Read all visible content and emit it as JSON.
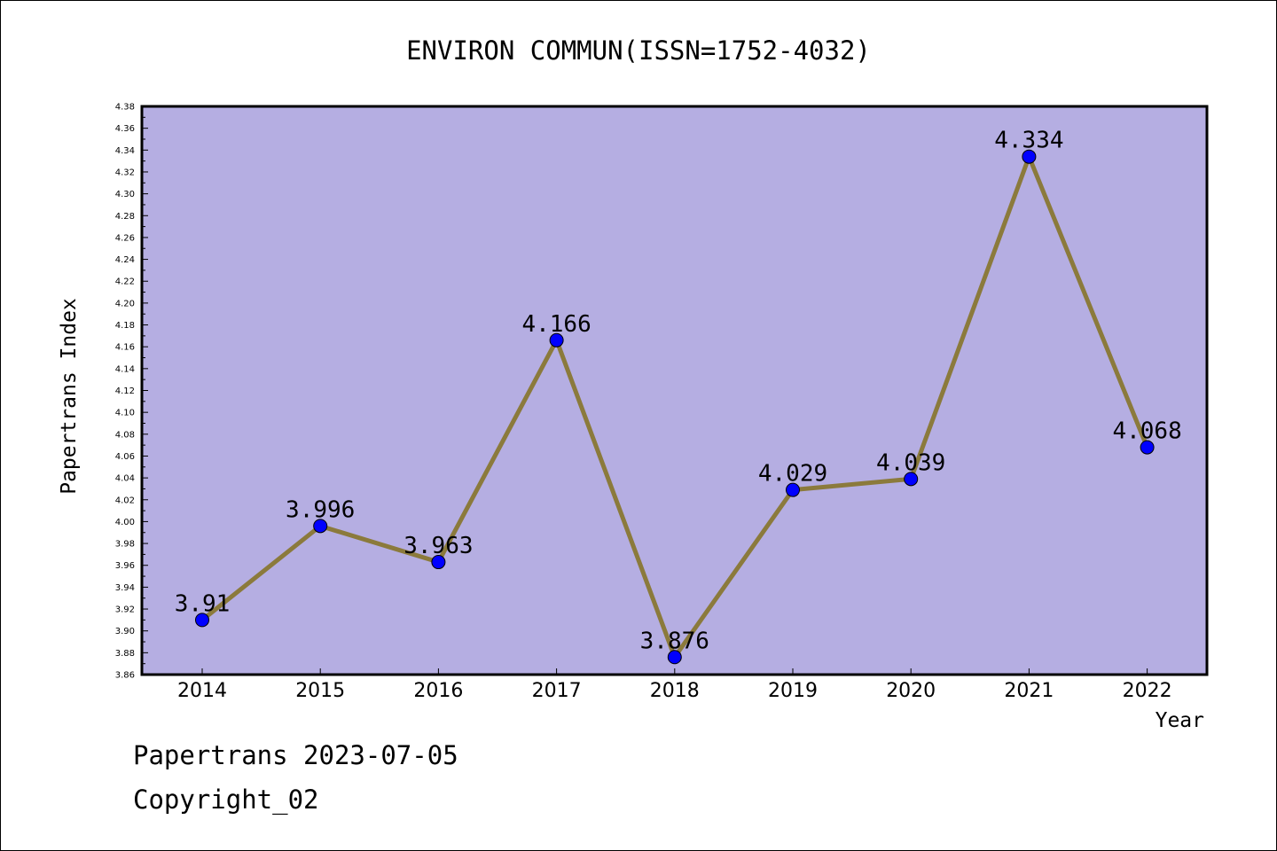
{
  "chart_data": {
    "type": "line",
    "title": "ENVIRON COMMUN(ISSN=1752-4032)",
    "xlabel": "Year",
    "ylabel": "Papertrans Index",
    "categories": [
      "2014",
      "2015",
      "2016",
      "2017",
      "2018",
      "2019",
      "2020",
      "2021",
      "2022"
    ],
    "series": [
      {
        "values": [
          3.91,
          3.996,
          3.963,
          4.166,
          3.876,
          4.029,
          4.039,
          4.334,
          4.068
        ],
        "labels": [
          "3.91",
          "3.996",
          "3.963",
          "4.166",
          "3.876",
          "4.029",
          "4.039",
          "4.334",
          "4.068"
        ]
      }
    ],
    "ylim": [
      3.86,
      4.38
    ],
    "ytick_step": 0.02,
    "yticks": [
      "3.86",
      "3.88",
      "3.90",
      "3.92",
      "3.94",
      "3.96",
      "3.98",
      "4.00",
      "4.02",
      "4.04",
      "4.06",
      "4.08",
      "4.10",
      "4.12",
      "4.14",
      "4.16",
      "4.18",
      "4.20",
      "4.22",
      "4.24",
      "4.26",
      "4.28",
      "4.30",
      "4.32",
      "4.34",
      "4.36",
      "4.38"
    ],
    "grid": false,
    "legend": "none",
    "colors": {
      "plot_background": "#b5aee2",
      "line": "#8b7a3c",
      "marker": "#0000ff"
    }
  },
  "footer": {
    "date_line": "Papertrans 2023-07-05",
    "copyright_line": "Copyright_02"
  }
}
